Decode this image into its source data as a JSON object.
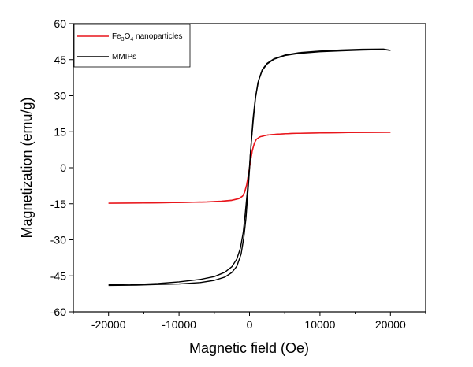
{
  "chart_data": {
    "type": "line",
    "xlabel": "Magnetic field (Oe)",
    "ylabel": "Magnetization (emu/g)",
    "xlim": [
      -25000,
      25000
    ],
    "ylim": [
      -60,
      60
    ],
    "xticks": [
      -20000,
      -10000,
      0,
      10000,
      20000
    ],
    "yticks": [
      -60,
      -45,
      -30,
      -15,
      0,
      15,
      30,
      45,
      60
    ],
    "xtick_labels": [
      "-20000",
      "-10000",
      "0",
      "10000",
      "20000"
    ],
    "ytick_labels": [
      "-60",
      "-45",
      "-30",
      "-15",
      "0",
      "15",
      "30",
      "45",
      "60"
    ],
    "legend_position": "top-left",
    "series": [
      {
        "name": "Fe3O4 nanoparticles",
        "legend_parts": {
          "p1": "Fe",
          "s1": "3",
          "p2": "O",
          "s2": "4",
          "p3": " nanoparticles"
        },
        "color": "#e8151b",
        "branches": [
          {
            "x": [
              -20000,
              -15000,
              -10000,
              -6000,
              -4000,
              -2500,
              -1500,
              -1000,
              -700,
              -400,
              -200,
              0,
              200,
              400,
              700,
              1000,
              1500,
              2500,
              4000,
              6000,
              10000,
              15000,
              20000
            ],
            "y": [
              -14.8,
              -14.7,
              -14.5,
              -14.2,
              -13.9,
              -13.5,
              -12.8,
              -11.8,
              -10.2,
              -7.0,
              -3.6,
              0.0,
              3.8,
              7.2,
              10.4,
              11.9,
              12.9,
              13.6,
              14.0,
              14.3,
              14.5,
              14.7,
              14.8
            ]
          },
          {
            "x": [
              20000,
              15000,
              10000,
              6000,
              4000,
              2500,
              1500,
              1000,
              700,
              400,
              200,
              0,
              -200,
              -400,
              -700,
              -1000,
              -1500,
              -2500,
              -4000,
              -6000,
              -10000,
              -15000,
              -20000
            ],
            "y": [
              14.8,
              14.7,
              14.5,
              14.3,
              14.0,
              13.6,
              12.9,
              11.9,
              10.4,
              7.2,
              3.6,
              0.0,
              -3.8,
              -7.2,
              -10.4,
              -11.9,
              -12.9,
              -13.6,
              -14.0,
              -14.3,
              -14.5,
              -14.7,
              -14.8
            ]
          }
        ]
      },
      {
        "name": "MMIPs",
        "color": "#000000",
        "branches": [
          {
            "x": [
              -20000,
              -17000,
              -15500,
              -13000,
              -10000,
              -7000,
              -5000,
              -3500,
              -2500,
              -1800,
              -1300,
              -900,
              -600,
              -300,
              -100,
              0,
              100,
              300,
              500,
              800,
              1200,
              1800,
              2500,
              3500,
              5000,
              7000,
              10000,
              13000,
              16000,
              19000,
              20000
            ],
            "y": [
              -48.7,
              -48.8,
              -48.5,
              -48.2,
              -47.5,
              -46.5,
              -45.3,
              -43.5,
              -41.2,
              -38.0,
              -33.5,
              -27.0,
              -19.0,
              -9.5,
              -3.0,
              0.5,
              4.5,
              12.5,
              20.5,
              28.5,
              35.5,
              40.5,
              43.2,
              45.2,
              46.7,
              47.6,
              48.3,
              48.7,
              49.0,
              49.2,
              48.9
            ]
          },
          {
            "x": [
              20000,
              19000,
              16000,
              13000,
              10000,
              7000,
              5000,
              3500,
              2500,
              1800,
              1300,
              900,
              600,
              300,
              100,
              0,
              -100,
              -300,
              -500,
              -800,
              -1200,
              -1800,
              -2500,
              -3500,
              -5000,
              -7000,
              -10000,
              -13000,
              -16000,
              -20000
            ],
            "y": [
              48.9,
              49.4,
              49.3,
              49.0,
              48.6,
              47.9,
              46.9,
              45.4,
              43.5,
              40.8,
              36.5,
              30.0,
              22.0,
              12.5,
              5.0,
              -0.8,
              -5.0,
              -13.0,
              -21.0,
              -29.0,
              -36.0,
              -41.0,
              -43.6,
              -45.5,
              -46.9,
              -47.8,
              -48.4,
              -48.6,
              -48.9,
              -49.0
            ]
          }
        ]
      }
    ]
  }
}
